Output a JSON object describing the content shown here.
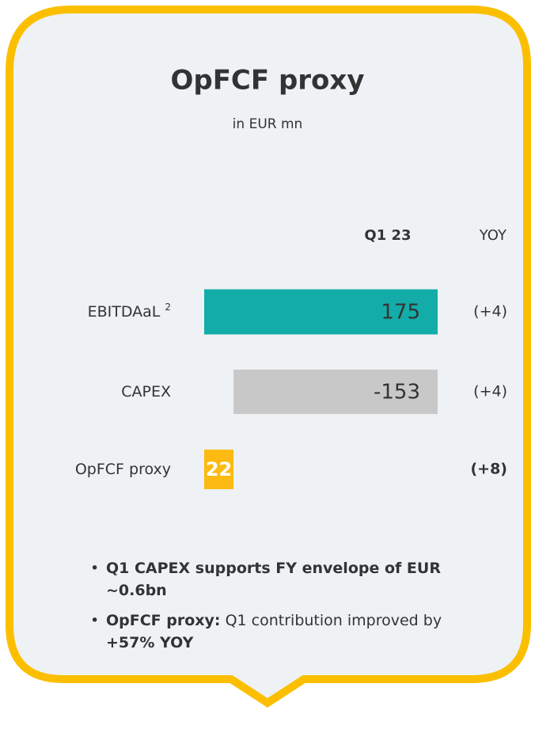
{
  "chart_data": {
    "type": "waterfall",
    "title": "OpFCF proxy",
    "subtitle": "in EUR mn",
    "column_headers": [
      "Q1 23",
      "YOY"
    ],
    "categories": [
      "EBITDAaL",
      "CAPEX",
      "OpFCF proxy"
    ],
    "footnotes": [
      "2",
      null,
      null
    ],
    "values": [
      175,
      -153,
      22
    ],
    "colors": [
      "#14aca8",
      "#c8c8c8",
      "#fdba12"
    ],
    "yoy": [
      "(+4)",
      "(+4)",
      "(+8)"
    ],
    "bullets": [
      {
        "lead": "Q1 CAPEX supports FY envelope of EUR ~0.6bn"
      },
      {
        "lead": "OpFCF proxy:",
        "text": "Q1 contribution improved by",
        "emphasis": "+57% YOY"
      }
    ]
  }
}
